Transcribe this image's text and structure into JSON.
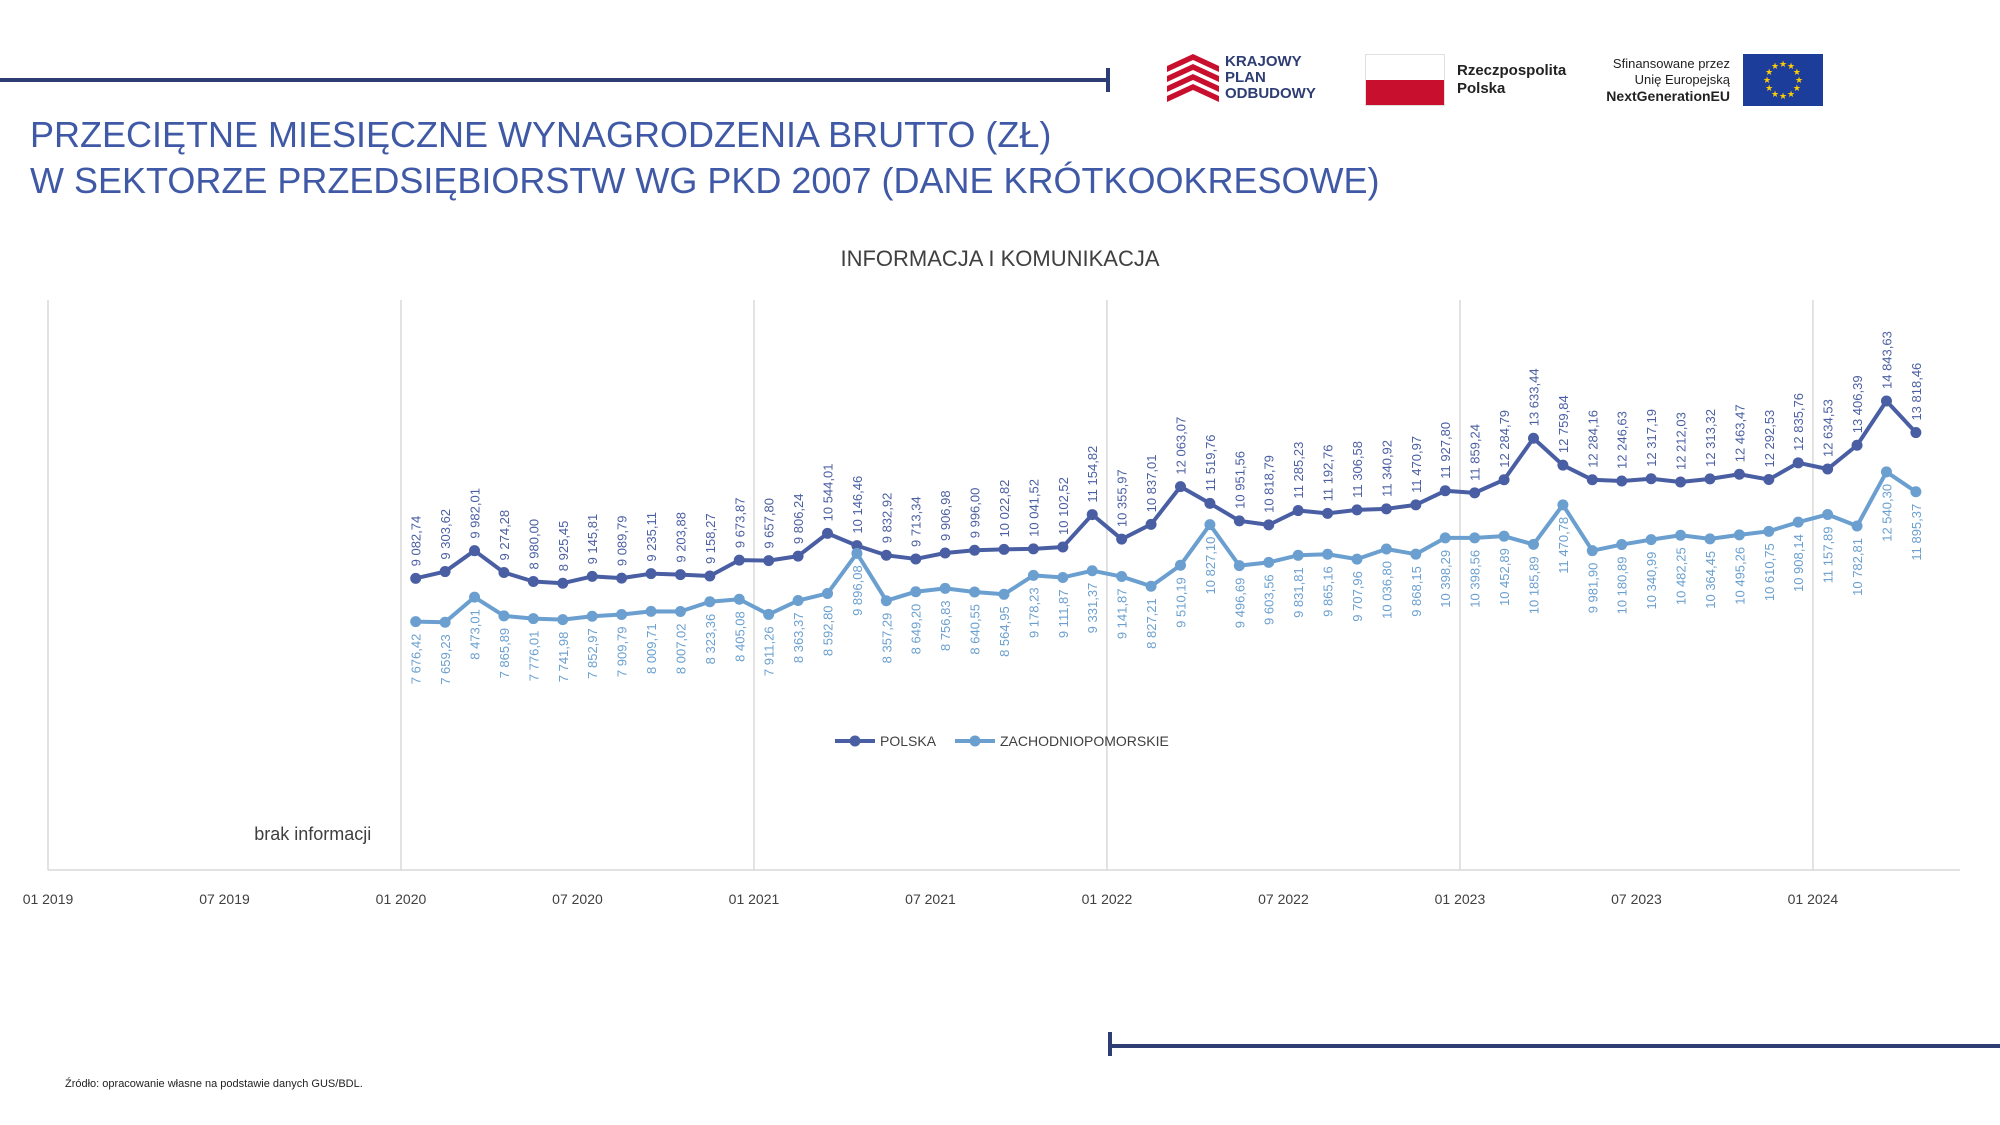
{
  "header": {
    "title_line1": "PRZECIĘTNE MIESIĘCZNE WYNAGRODZENIA BRUTTO (ZŁ)",
    "title_line2": "W SEKTORZE PRZEDSIĘBIORSTW WG PKD 2007 (DANE KRÓTKOOKRESOWE)"
  },
  "logos": {
    "kpo_line1": "KRAJOWY",
    "kpo_line2": "PLAN",
    "kpo_line3": "ODBUDOWY",
    "rp_line1": "Rzeczpospolita",
    "rp_line2": "Polska",
    "eu_line1": "Sfinansowane przez",
    "eu_line2": "Unię Europejską",
    "eu_line3": "NextGenerationEU",
    "colors": {
      "navy": "#2e3d74",
      "red": "#c8102e",
      "eu_blue": "#1d3d9a",
      "eu_star": "#ffcc00"
    }
  },
  "footer": {
    "source": "Źródło: opracowanie własne na podstawie danych GUS/BDL."
  },
  "chart_data": {
    "type": "line",
    "title": "INFORMACJA I KOMUNIKACJA",
    "x_tick_labels": [
      "01 2019",
      "07 2019",
      "01 2020",
      "07 2020",
      "01 2021",
      "07 2021",
      "01 2022",
      "07 2022",
      "01 2023",
      "07 2023",
      "01 2024"
    ],
    "x_start_label": "01 2019",
    "x_months_total": 65,
    "data_start_index": 12,
    "no_data_note": "brak informacji",
    "ylim": [
      0,
      16500
    ],
    "grid": "vertical at January",
    "legend_position": "bottom-center",
    "series": [
      {
        "name": "POLSKA",
        "color": "#4a5fa3",
        "values": [
          9082.74,
          9303.62,
          9982.01,
          9274.28,
          8980.0,
          8925.45,
          9145.81,
          9089.79,
          9235.11,
          9203.88,
          9158.27,
          9673.87,
          9657.8,
          9806.24,
          10544.01,
          10146.46,
          9832.92,
          9713.34,
          9906.98,
          9996.0,
          10022.82,
          10041.52,
          10102.52,
          11154.82,
          10355.97,
          10837.01,
          12063.07,
          11519.76,
          10951.56,
          10818.79,
          11285.23,
          11192.76,
          11306.58,
          11340.92,
          11470.97,
          11927.8,
          11859.24,
          12284.79,
          13633.44,
          12759.84,
          12284.16,
          12246.63,
          12317.19,
          12212.03,
          12313.32,
          12463.47,
          12292.53,
          12835.76,
          12634.53,
          13406.39,
          14843.63,
          13818.46
        ],
        "labels": [
          "9 082,74",
          "9 303,62",
          "9 982,01",
          "9 274,28",
          "8 980,00",
          "8 925,45",
          "9 145,81",
          "9 089,79",
          "9 235,11",
          "9 203,88",
          "9 158,27",
          "9 673,87",
          "9 657,80",
          "9 806,24",
          "10 544,01",
          "10 146,46",
          "9 832,92",
          "9 713,34",
          "9 906,98",
          "9 996,00",
          "10 022,82",
          "10 041,52",
          "10 102,52",
          "11 154,82",
          "10 355,97",
          "10 837,01",
          "12 063,07",
          "11 519,76",
          "10 951,56",
          "10 818,79",
          "11 285,23",
          "11 192,76",
          "11 306,58",
          "11 340,92",
          "11 470,97",
          "11 927,80",
          "11 859,24",
          "12 284,79",
          "13 633,44",
          "12 759,84",
          "12 284,16",
          "12 246,63",
          "12 317,19",
          "12 212,03",
          "12 313,32",
          "12 463,47",
          "12 292,53",
          "12 835,76",
          "12 634,53",
          "13 406,39",
          "14 843,63",
          "13 818,46"
        ]
      },
      {
        "name": "ZACHODNIOPOMORSKIE",
        "color": "#6a9fcf",
        "values": [
          7676.42,
          7659.23,
          8473.01,
          7865.89,
          7776.01,
          7741.98,
          7852.97,
          7909.79,
          8009.71,
          8007.02,
          8323.36,
          8405.08,
          7911.26,
          8363.37,
          8592.8,
          9896.08,
          8357.29,
          8649.2,
          8756.83,
          8640.55,
          8564.95,
          9178.23,
          9111.87,
          9331.37,
          9141.87,
          8827.21,
          9510.19,
          10827.1,
          9496.69,
          9603.56,
          9831.81,
          9865.16,
          9707.96,
          10036.8,
          9868.15,
          10398.29,
          10398.56,
          10452.89,
          10185.89,
          11470.78,
          9981.9,
          10180.89,
          10340.99,
          10482.25,
          10364.45,
          10495.26,
          10610.75,
          10908.14,
          11157.89,
          10782.81,
          12540.3,
          11895.37
        ],
        "labels": [
          "7 676,42",
          "7 659,23",
          "8 473,01",
          "7 865,89",
          "7 776,01",
          "7 741,98",
          "7 852,97",
          "7 909,79",
          "8 009,71",
          "8 007,02",
          "8 323,36",
          "8 405,08",
          "7 911,26",
          "8 363,37",
          "8 592,80",
          "9 896,08",
          "8 357,29",
          "8 649,20",
          "8 756,83",
          "8 640,55",
          "8 564,95",
          "9 178,23",
          "9 111,87",
          "9 331,37",
          "9 141,87",
          "8 827,21",
          "9 510,19",
          "10 827,10",
          "9 496,69",
          "9 603,56",
          "9 831,81",
          "9 865,16",
          "9 707,96",
          "10 036,80",
          "9 868,15",
          "10 398,29",
          "10 398,56",
          "10 452,89",
          "10 185,89",
          "11 470,78",
          "9 981,90",
          "10 180,89",
          "10 340,99",
          "10 482,25",
          "10 364,45",
          "10 495,26",
          "10 610,75",
          "10 908,14",
          "11 157,89",
          "10 782,81",
          "12 540,30",
          "11 895,37"
        ]
      }
    ]
  }
}
